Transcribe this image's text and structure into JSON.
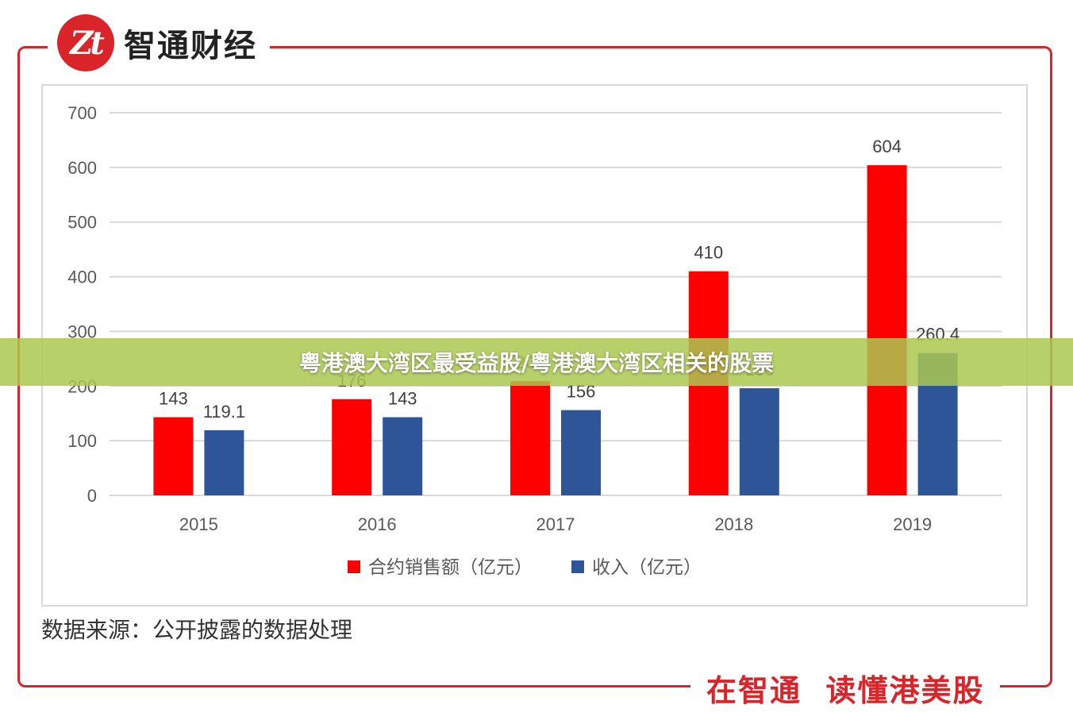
{
  "brand": {
    "logo_mark": "Zt",
    "name": "智通财经"
  },
  "source_note": "数据来源：公开披露的数据处理",
  "footer": {
    "tagline": "在智通  读懂港美股"
  },
  "banner": {
    "title": "粤港澳大湾区最受益股/粤港澳大湾区相关的股票"
  },
  "colors": {
    "accent": "#d9252a",
    "series_sales": "#ff0000",
    "series_revenue": "#2e5597"
  },
  "chart_data": {
    "type": "bar",
    "categories": [
      "2015",
      "2016",
      "2017",
      "2018",
      "2019"
    ],
    "series": [
      {
        "name": "合约销售额（亿元）",
        "values": [
          143,
          176,
          209,
          410,
          604
        ],
        "labels": [
          "143",
          "176",
          "209",
          "410",
          "604"
        ]
      },
      {
        "name": "收入（亿元）",
        "values": [
          119.1,
          143,
          156,
          196,
          260.4
        ],
        "labels": [
          "119.1",
          "143",
          "156",
          "196",
          "260.4"
        ]
      }
    ],
    "yticks": [
      "0",
      "100",
      "200",
      "300",
      "400",
      "500",
      "600",
      "700"
    ],
    "ylim": [
      0,
      700
    ],
    "grid": true,
    "legend": "bottom"
  }
}
